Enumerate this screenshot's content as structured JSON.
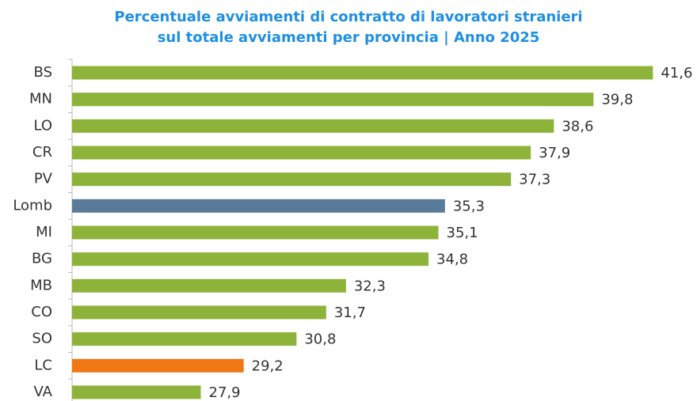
{
  "chart_data": {
    "type": "bar",
    "orientation": "horizontal",
    "title": [
      "Percentuale avviamenti di contratto di lavoratori stranieri",
      "sul totale avviamenti per provincia | Anno 2025"
    ],
    "categories": [
      "BS",
      "MN",
      "LO",
      "CR",
      "PV",
      "Lomb",
      "MI",
      "BG",
      "MB",
      "CO",
      "SO",
      "LC",
      "VA"
    ],
    "values": [
      41.6,
      39.8,
      38.6,
      37.9,
      37.3,
      35.3,
      35.1,
      34.8,
      32.3,
      31.7,
      30.8,
      29.2,
      27.9
    ],
    "value_labels": [
      "41,6",
      "39,8",
      "38,6",
      "37,9",
      "37,3",
      "35,3",
      "35,1",
      "34,8",
      "32,3",
      "31,7",
      "30,8",
      "29,2",
      "27,9"
    ],
    "colors": [
      "#8db33a",
      "#8db33a",
      "#8db33a",
      "#8db33a",
      "#8db33a",
      "#5a7a99",
      "#8db33a",
      "#8db33a",
      "#8db33a",
      "#8db33a",
      "#8db33a",
      "#f07814",
      "#8db33a"
    ],
    "xlim": [
      24,
      42
    ]
  }
}
